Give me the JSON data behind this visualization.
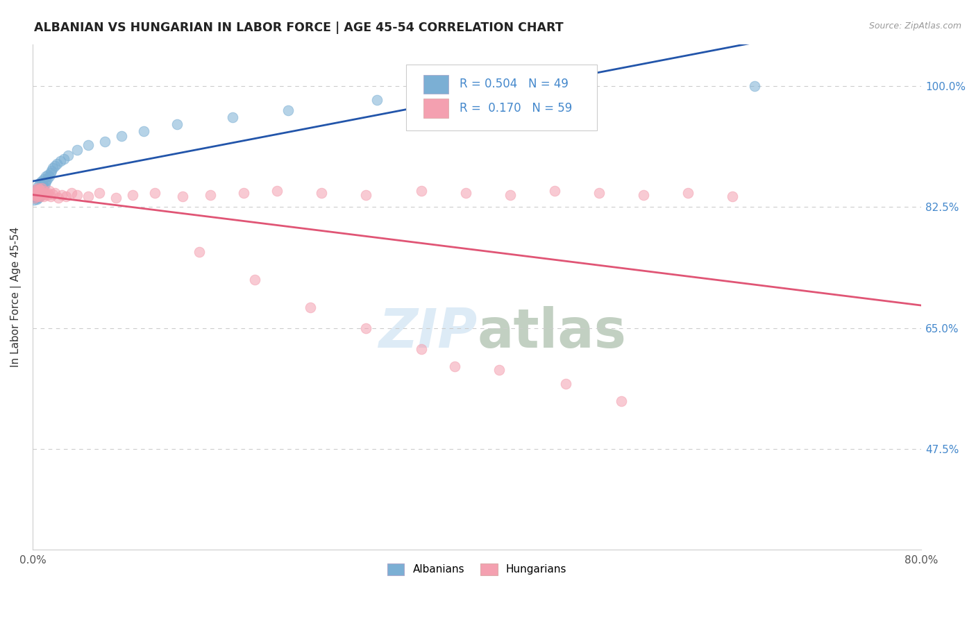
{
  "title": "ALBANIAN VS HUNGARIAN IN LABOR FORCE | AGE 45-54 CORRELATION CHART",
  "source": "Source: ZipAtlas.com",
  "ylabel": "In Labor Force | Age 45-54",
  "ytick_labels": [
    "47.5%",
    "65.0%",
    "82.5%",
    "100.0%"
  ],
  "ytick_values": [
    0.475,
    0.65,
    0.825,
    1.0
  ],
  "xlim": [
    0.0,
    0.8
  ],
  "ylim": [
    0.33,
    1.06
  ],
  "r_albanian": 0.504,
  "n_albanian": 49,
  "r_hungarian": 0.17,
  "n_hungarian": 59,
  "albanian_color": "#7bafd4",
  "hungarian_color": "#f4a0b0",
  "trendline_albanian_color": "#2255aa",
  "trendline_hungarian_color": "#e05575",
  "background_color": "#ffffff",
  "grid_color": "#cccccc",
  "title_color": "#222222",
  "right_label_color": "#4488cc",
  "albanian_x": [
    0.001,
    0.002,
    0.002,
    0.003,
    0.003,
    0.003,
    0.004,
    0.004,
    0.004,
    0.005,
    0.005,
    0.005,
    0.005,
    0.006,
    0.006,
    0.007,
    0.007,
    0.007,
    0.008,
    0.008,
    0.008,
    0.009,
    0.009,
    0.01,
    0.01,
    0.011,
    0.012,
    0.012,
    0.013,
    0.014,
    0.015,
    0.016,
    0.017,
    0.018,
    0.02,
    0.022,
    0.025,
    0.028,
    0.032,
    0.04,
    0.05,
    0.065,
    0.08,
    0.1,
    0.13,
    0.18,
    0.23,
    0.31,
    0.65
  ],
  "albanian_y": [
    0.835,
    0.84,
    0.845,
    0.838,
    0.842,
    0.85,
    0.836,
    0.843,
    0.847,
    0.838,
    0.845,
    0.85,
    0.855,
    0.84,
    0.848,
    0.843,
    0.852,
    0.86,
    0.847,
    0.855,
    0.862,
    0.85,
    0.858,
    0.855,
    0.865,
    0.858,
    0.862,
    0.87,
    0.865,
    0.872,
    0.87,
    0.875,
    0.878,
    0.882,
    0.885,
    0.888,
    0.892,
    0.895,
    0.9,
    0.908,
    0.915,
    0.92,
    0.928,
    0.935,
    0.945,
    0.955,
    0.965,
    0.98,
    1.0
  ],
  "hungarian_x": [
    0.001,
    0.002,
    0.002,
    0.003,
    0.003,
    0.004,
    0.004,
    0.005,
    0.005,
    0.006,
    0.006,
    0.007,
    0.007,
    0.008,
    0.008,
    0.009,
    0.01,
    0.01,
    0.011,
    0.012,
    0.013,
    0.014,
    0.015,
    0.016,
    0.018,
    0.02,
    0.023,
    0.026,
    0.03,
    0.035,
    0.04,
    0.05,
    0.06,
    0.075,
    0.09,
    0.11,
    0.135,
    0.16,
    0.19,
    0.22,
    0.26,
    0.3,
    0.35,
    0.39,
    0.43,
    0.47,
    0.51,
    0.55,
    0.59,
    0.63,
    0.15,
    0.2,
    0.25,
    0.3,
    0.35,
    0.42,
    0.48,
    0.53,
    0.38
  ],
  "hungarian_y": [
    0.842,
    0.845,
    0.838,
    0.842,
    0.85,
    0.84,
    0.848,
    0.843,
    0.852,
    0.845,
    0.85,
    0.84,
    0.848,
    0.843,
    0.852,
    0.845,
    0.84,
    0.848,
    0.843,
    0.845,
    0.842,
    0.845,
    0.848,
    0.84,
    0.843,
    0.845,
    0.838,
    0.842,
    0.84,
    0.845,
    0.842,
    0.84,
    0.845,
    0.838,
    0.842,
    0.845,
    0.84,
    0.842,
    0.845,
    0.848,
    0.845,
    0.842,
    0.848,
    0.845,
    0.842,
    0.848,
    0.845,
    0.842,
    0.845,
    0.84,
    0.76,
    0.72,
    0.68,
    0.65,
    0.62,
    0.59,
    0.57,
    0.545,
    0.595
  ]
}
